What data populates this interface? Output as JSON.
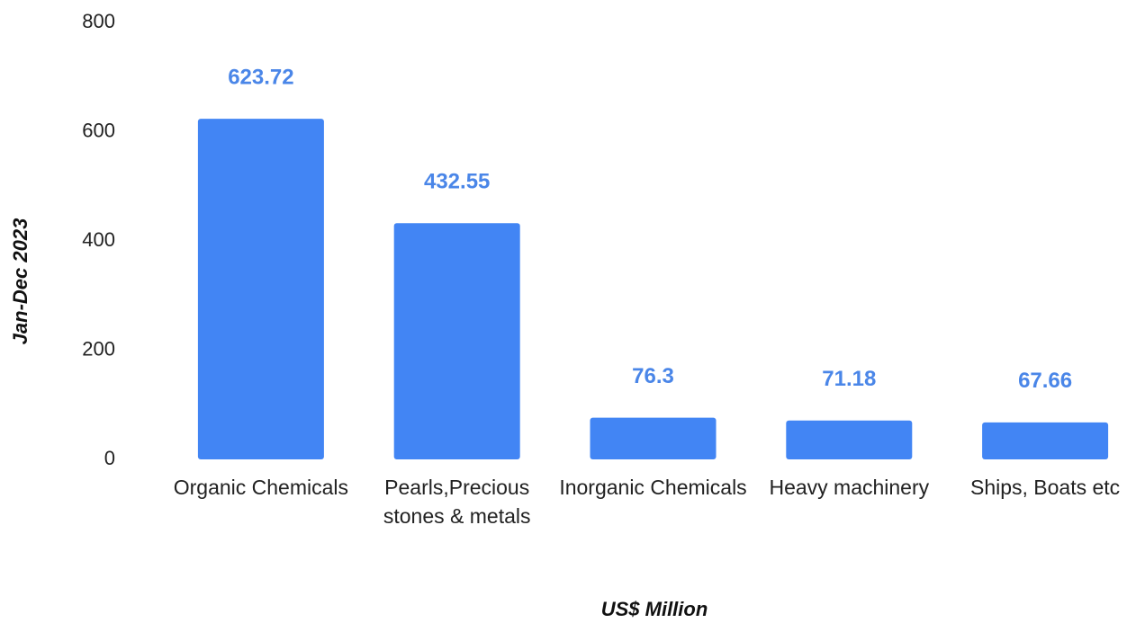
{
  "chart_data": {
    "type": "bar",
    "x_label": "US$ Million",
    "y_label": "Jan-Dec 2023",
    "categories": [
      "Organic Chemicals",
      "Pearls,Precious stones & metals",
      "Inorganic Chemicals",
      "Heavy machinery",
      "Ships, Boats etc"
    ],
    "values": [
      623.72,
      432.55,
      76.3,
      71.18,
      67.66
    ],
    "color": "#4285f4",
    "value_label_color": "#4a86e8",
    "ylim": [
      0,
      800
    ],
    "yticks": [
      0,
      200,
      400,
      600,
      800
    ],
    "grid": false
  }
}
